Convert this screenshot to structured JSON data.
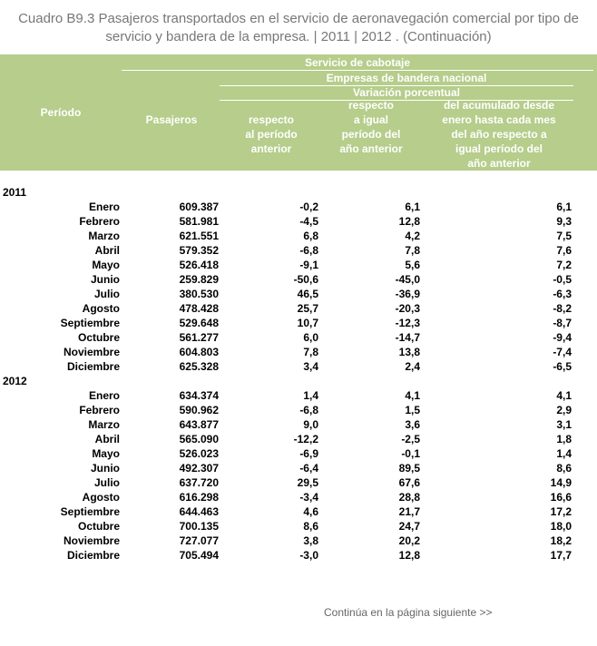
{
  "title": "Cuadro B9.3 Pasajeros transportados en el servicio de aeronavegación comercial por tipo de servicio y bandera de la empresa. | 2011 | 2012 . (Continuación)",
  "header": {
    "periodo": "Período",
    "servicio": "Servicio de cabotaje",
    "empresas": "Empresas de bandera nacional",
    "variacion": "Variación porcentual",
    "pasajeros": "Pasajeros",
    "col1": [
      "respecto",
      "al período",
      "anterior"
    ],
    "col2": [
      "respecto",
      "a igual",
      "período del",
      "año anterior"
    ],
    "col3": [
      "del acumulado desde",
      "enero hasta cada mes",
      "del año respecto a",
      "igual período del",
      "año anterior"
    ]
  },
  "groups": [
    {
      "year": "2011",
      "rows": [
        {
          "mes": "Enero",
          "pasajeros": "609.387",
          "v1": "-0,2",
          "v2": "6,1",
          "v3": "6,1"
        },
        {
          "mes": "Febrero",
          "pasajeros": "581.981",
          "v1": "-4,5",
          "v2": "12,8",
          "v3": "9,3"
        },
        {
          "mes": "Marzo",
          "pasajeros": "621.551",
          "v1": "6,8",
          "v2": "4,2",
          "v3": "7,5"
        },
        {
          "mes": "Abril",
          "pasajeros": "579.352",
          "v1": "-6,8",
          "v2": "7,8",
          "v3": "7,6"
        },
        {
          "mes": "Mayo",
          "pasajeros": "526.418",
          "v1": "-9,1",
          "v2": "5,6",
          "v3": "7,2"
        },
        {
          "mes": "Junio",
          "pasajeros": "259.829",
          "v1": "-50,6",
          "v2": "-45,0",
          "v3": "-0,5"
        },
        {
          "mes": "Julio",
          "pasajeros": "380.530",
          "v1": "46,5",
          "v2": "-36,9",
          "v3": "-6,3"
        },
        {
          "mes": "Agosto",
          "pasajeros": "478.428",
          "v1": "25,7",
          "v2": "-20,3",
          "v3": "-8,2"
        },
        {
          "mes": "Septiembre",
          "pasajeros": "529.648",
          "v1": "10,7",
          "v2": "-12,3",
          "v3": "-8,7"
        },
        {
          "mes": "Octubre",
          "pasajeros": "561.277",
          "v1": "6,0",
          "v2": "-14,7",
          "v3": "-9,4"
        },
        {
          "mes": "Noviembre",
          "pasajeros": "604.803",
          "v1": "7,8",
          "v2": "13,8",
          "v3": "-7,4"
        },
        {
          "mes": "Diciembre",
          "pasajeros": "625.328",
          "v1": "3,4",
          "v2": "2,4",
          "v3": "-6,5"
        }
      ]
    },
    {
      "year": "2012",
      "rows": [
        {
          "mes": "Enero",
          "pasajeros": "634.374",
          "v1": "1,4",
          "v2": "4,1",
          "v3": "4,1"
        },
        {
          "mes": "Febrero",
          "pasajeros": "590.962",
          "v1": "-6,8",
          "v2": "1,5",
          "v3": "2,9"
        },
        {
          "mes": "Marzo",
          "pasajeros": "643.877",
          "v1": "9,0",
          "v2": "3,6",
          "v3": "3,1"
        },
        {
          "mes": "Abril",
          "pasajeros": "565.090",
          "v1": "-12,2",
          "v2": "-2,5",
          "v3": "1,8"
        },
        {
          "mes": "Mayo",
          "pasajeros": "526.023",
          "v1": "-6,9",
          "v2": "-0,1",
          "v3": "1,4"
        },
        {
          "mes": "Junio",
          "pasajeros": "492.307",
          "v1": "-6,4",
          "v2": "89,5",
          "v3": "8,6"
        },
        {
          "mes": "Julio",
          "pasajeros": "637.720",
          "v1": "29,5",
          "v2": "67,6",
          "v3": "14,9"
        },
        {
          "mes": "Agosto",
          "pasajeros": "616.298",
          "v1": "-3,4",
          "v2": "28,8",
          "v3": "16,6"
        },
        {
          "mes": "Septiembre",
          "pasajeros": "644.463",
          "v1": "4,6",
          "v2": "21,7",
          "v3": "17,2"
        },
        {
          "mes": "Octubre",
          "pasajeros": "700.135",
          "v1": "8,6",
          "v2": "24,7",
          "v3": "18,0"
        },
        {
          "mes": "Noviembre",
          "pasajeros": "727.077",
          "v1": "3,8",
          "v2": "20,2",
          "v3": "18,2"
        },
        {
          "mes": "Diciembre",
          "pasajeros": "705.494",
          "v1": "-3,0",
          "v2": "12,8",
          "v3": "17,7"
        }
      ]
    }
  ],
  "footer": "Continúa en la página siguiente >>",
  "colors": {
    "header_bg": "#b6cd8b",
    "header_text": "#ffffff",
    "title": "#777777",
    "footer": "#666666"
  }
}
